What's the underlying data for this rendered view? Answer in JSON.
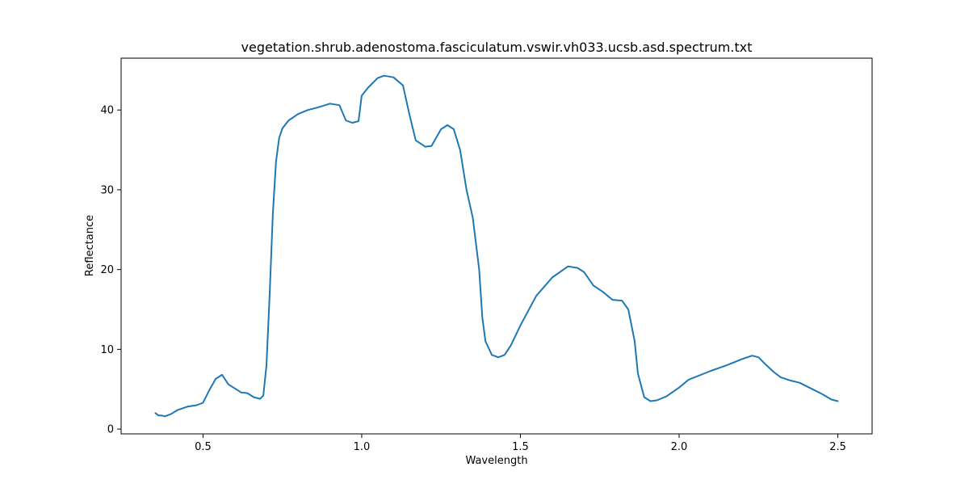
{
  "chart_data": {
    "type": "line",
    "title": "vegetation.shrub.adenostoma.fasciculatum.vswir.vh033.ucsb.asd.spectrum.txt",
    "xlabel": "Wavelength",
    "ylabel": "Reflectance",
    "xlim": [
      0.242,
      2.608
    ],
    "ylim": [
      -0.6,
      46.5
    ],
    "xticks": [
      0.5,
      1.0,
      1.5,
      2.0,
      2.5
    ],
    "xtick_labels": [
      "0.5",
      "1.0",
      "1.5",
      "2.0",
      "2.5"
    ],
    "yticks": [
      0,
      10,
      20,
      30,
      40
    ],
    "ytick_labels": [
      "0",
      "10",
      "20",
      "30",
      "40"
    ],
    "grid": false,
    "legend": "none",
    "series": [
      {
        "color": "#1f77b4",
        "x": [
          0.35,
          0.36,
          0.37,
          0.38,
          0.4,
          0.42,
          0.45,
          0.48,
          0.5,
          0.52,
          0.54,
          0.56,
          0.58,
          0.6,
          0.62,
          0.64,
          0.66,
          0.68,
          0.69,
          0.7,
          0.71,
          0.72,
          0.73,
          0.74,
          0.75,
          0.77,
          0.8,
          0.83,
          0.86,
          0.9,
          0.93,
          0.95,
          0.97,
          0.99,
          1.0,
          1.02,
          1.05,
          1.07,
          1.1,
          1.13,
          1.15,
          1.17,
          1.2,
          1.22,
          1.25,
          1.27,
          1.29,
          1.31,
          1.33,
          1.35,
          1.37,
          1.38,
          1.39,
          1.41,
          1.43,
          1.45,
          1.47,
          1.5,
          1.55,
          1.6,
          1.65,
          1.68,
          1.7,
          1.73,
          1.76,
          1.79,
          1.82,
          1.84,
          1.86,
          1.87,
          1.89,
          1.91,
          1.93,
          1.96,
          2.0,
          2.03,
          2.1,
          2.15,
          2.2,
          2.23,
          2.25,
          2.27,
          2.3,
          2.32,
          2.35,
          2.38,
          2.42,
          2.45,
          2.48,
          2.5
        ],
        "y": [
          2.0,
          1.7,
          1.7,
          1.6,
          1.9,
          2.4,
          2.8,
          3.0,
          3.3,
          4.9,
          6.3,
          6.8,
          5.6,
          5.1,
          4.6,
          4.5,
          4.0,
          3.8,
          4.2,
          8.0,
          17.0,
          27.0,
          33.5,
          36.5,
          37.7,
          38.7,
          39.5,
          40.0,
          40.3,
          40.8,
          40.6,
          38.7,
          38.4,
          38.6,
          41.8,
          42.8,
          44.0,
          44.3,
          44.1,
          43.1,
          39.5,
          36.2,
          35.4,
          35.5,
          37.6,
          38.1,
          37.6,
          35.0,
          30.0,
          26.5,
          20.0,
          14.0,
          11.0,
          9.3,
          9.0,
          9.3,
          10.5,
          13.0,
          16.7,
          19.0,
          20.4,
          20.2,
          19.7,
          18.0,
          17.2,
          16.2,
          16.1,
          15.0,
          11.0,
          7.0,
          4.0,
          3.5,
          3.6,
          4.1,
          5.2,
          6.2,
          7.3,
          8.0,
          8.8,
          9.2,
          9.0,
          8.2,
          7.1,
          6.5,
          6.1,
          5.8,
          5.0,
          4.4,
          3.7,
          3.5
        ]
      }
    ]
  }
}
